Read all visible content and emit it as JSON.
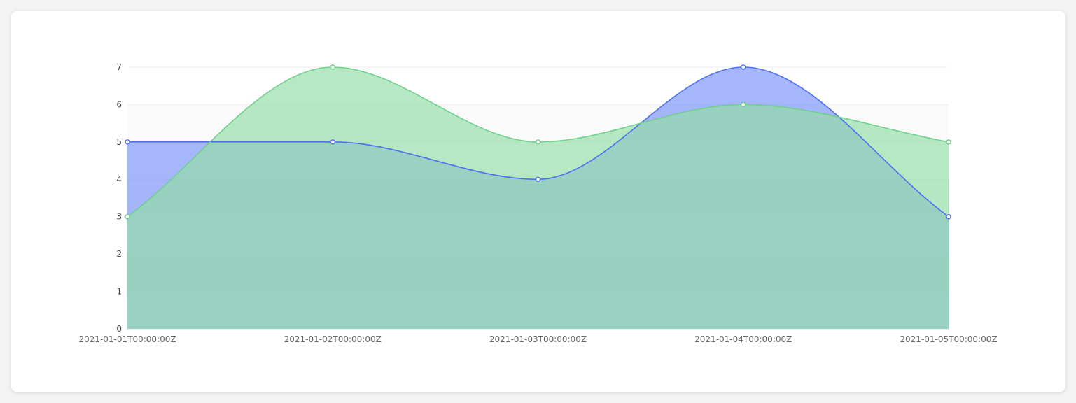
{
  "chart_data": {
    "type": "area",
    "curve": "smooth",
    "grid": true,
    "legend": "none",
    "x": [
      "2021-01-01T00:00:00Z",
      "2021-01-02T00:00:00Z",
      "2021-01-03T00:00:00Z",
      "2021-01-04T00:00:00Z",
      "2021-01-05T00:00:00Z"
    ],
    "ylim": [
      0,
      7
    ],
    "yticks": [
      "0",
      "1",
      "2",
      "3",
      "4",
      "5",
      "6",
      "7"
    ],
    "series": [
      {
        "values": [
          5,
          5,
          4,
          7,
          3
        ],
        "stroke": "#4f6ff0",
        "fill": "#7b93f7"
      },
      {
        "values": [
          3,
          7,
          5,
          6,
          5
        ],
        "stroke": "#6fd08c",
        "fill": "#93dea6"
      }
    ]
  }
}
